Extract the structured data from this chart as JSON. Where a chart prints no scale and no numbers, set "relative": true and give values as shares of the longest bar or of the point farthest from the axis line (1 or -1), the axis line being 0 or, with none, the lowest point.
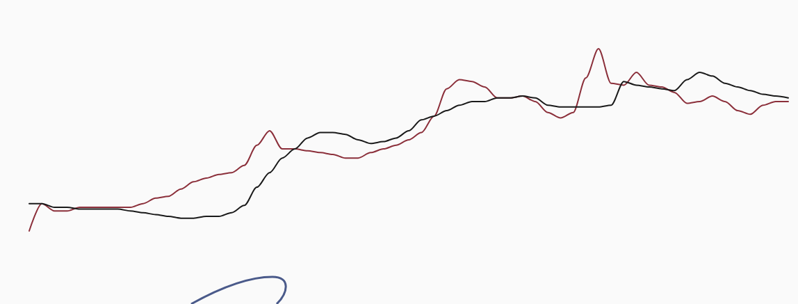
{
  "chart_data": {
    "type": "line",
    "relative": true,
    "categories": [
      null,
      null,
      null,
      null,
      null,
      null,
      null,
      null,
      null,
      null,
      null,
      null,
      null,
      null,
      null,
      null,
      null,
      null,
      null,
      null,
      null,
      null,
      null,
      null,
      null,
      null,
      null,
      null,
      null,
      null,
      null,
      null,
      null,
      null,
      null,
      null,
      null,
      null,
      null,
      null,
      null,
      null,
      null,
      null,
      null,
      null,
      null,
      null,
      null,
      null,
      null,
      null,
      null,
      null,
      null,
      null,
      null,
      null,
      null,
      null,
      null
    ],
    "series": [
      {
        "color": "#8b2f3a",
        "values": [
          0,
          0.15,
          0.11,
          0.11,
          0.13,
          0.13,
          0.13,
          0.13,
          0.13,
          0.15,
          0.18,
          0.19,
          0.23,
          0.27,
          0.29,
          0.31,
          0.32,
          0.36,
          0.47,
          0.55,
          0.45,
          0.45,
          0.44,
          0.43,
          0.42,
          0.4,
          0.4,
          0.43,
          0.45,
          0.47,
          0.5,
          0.54,
          0.63,
          0.78,
          0.83,
          0.82,
          0.79,
          0.73,
          0.73,
          0.74,
          0.71,
          0.65,
          0.62,
          0.65,
          0.84,
          1,
          0.81,
          0.8,
          0.87,
          0.8,
          0.79,
          0.76,
          0.7,
          0.71,
          0.74,
          0.71,
          0.66,
          0.64,
          0.69,
          0.71,
          0.71
        ]
      },
      {
        "color": "#1a1a1a",
        "values": [
          0.15,
          0.15,
          0.13,
          0.13,
          0.12,
          0.12,
          0.12,
          0.12,
          0.11,
          0.1,
          0.09,
          0.08,
          0.07,
          0.07,
          0.08,
          0.08,
          0.1,
          0.14,
          0.24,
          0.32,
          0.4,
          0.45,
          0.51,
          0.54,
          0.54,
          0.53,
          0.5,
          0.48,
          0.49,
          0.51,
          0.55,
          0.61,
          0.63,
          0.66,
          0.69,
          0.71,
          0.71,
          0.73,
          0.73,
          0.74,
          0.73,
          0.69,
          0.68,
          0.68,
          0.68,
          0.68,
          0.69,
          0.82,
          0.8,
          0.79,
          0.78,
          0.77,
          0.83,
          0.87,
          0.85,
          0.81,
          0.79,
          0.77,
          0.75,
          0.74,
          0.73
        ]
      }
    ],
    "marker": "none",
    "line_style": "solid",
    "grid": false
  }
}
